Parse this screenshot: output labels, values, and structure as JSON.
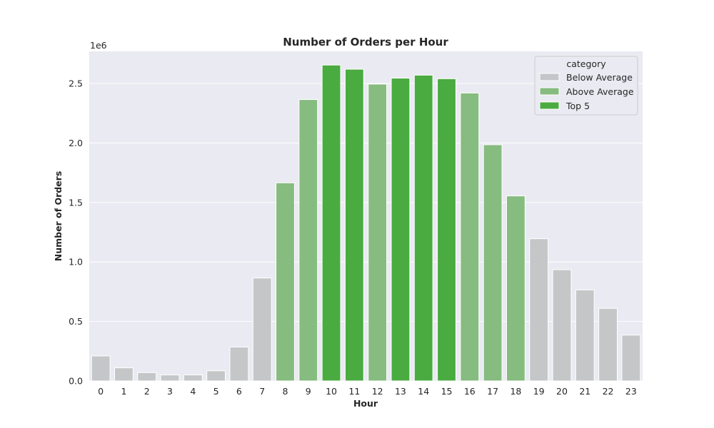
{
  "chart_data": {
    "type": "bar",
    "title": "Number of Orders per Hour",
    "xlabel": "Hour",
    "ylabel": "Number of Orders",
    "y_scale_label": "1e6",
    "y_scale": 1000000,
    "ylim": [
      0,
      2.77
    ],
    "yticks": [
      0.0,
      0.5,
      1.0,
      1.5,
      2.0,
      2.5
    ],
    "ytick_labels": [
      "0.0",
      "0.5",
      "1.0",
      "1.5",
      "2.0",
      "2.5"
    ],
    "categories": [
      "0",
      "1",
      "2",
      "3",
      "4",
      "5",
      "6",
      "7",
      "8",
      "9",
      "10",
      "11",
      "12",
      "13",
      "14",
      "15",
      "16",
      "17",
      "18",
      "19",
      "20",
      "21",
      "22",
      "23"
    ],
    "values": [
      0.21,
      0.11,
      0.07,
      0.05,
      0.05,
      0.085,
      0.285,
      0.865,
      1.665,
      2.365,
      2.655,
      2.62,
      2.495,
      2.545,
      2.57,
      2.54,
      2.42,
      1.985,
      1.555,
      1.195,
      0.935,
      0.765,
      0.61,
      0.385
    ],
    "bar_category": [
      "Below Average",
      "Below Average",
      "Below Average",
      "Below Average",
      "Below Average",
      "Below Average",
      "Below Average",
      "Below Average",
      "Above Average",
      "Above Average",
      "Top 5",
      "Top 5",
      "Above Average",
      "Top 5",
      "Top 5",
      "Top 5",
      "Above Average",
      "Above Average",
      "Above Average",
      "Below Average",
      "Below Average",
      "Below Average",
      "Below Average",
      "Below Average"
    ],
    "legend": {
      "title": "category",
      "position": "top-right",
      "entries": [
        {
          "label": "Below Average",
          "color": "#c4c6c8"
        },
        {
          "label": "Above Average",
          "color": "#86bc7f"
        },
        {
          "label": "Top 5",
          "color": "#4aab40"
        }
      ]
    },
    "grid": true,
    "colors": {
      "background": "#eaeaf2",
      "grid": "#ffffff"
    }
  }
}
